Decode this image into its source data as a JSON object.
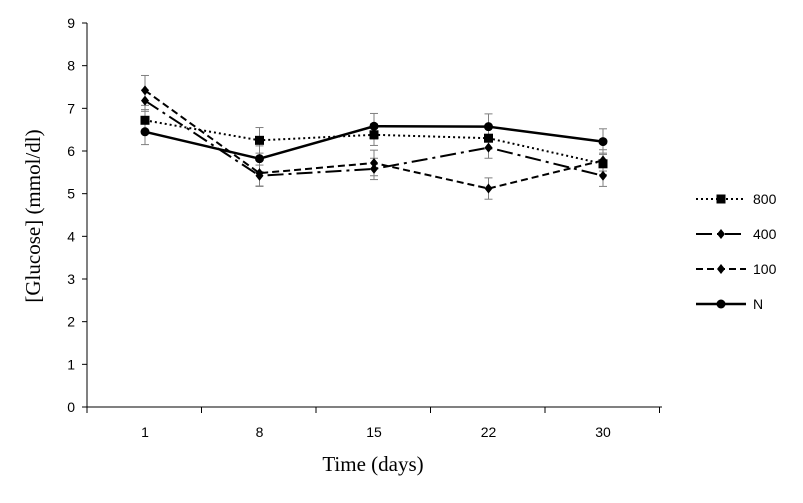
{
  "chart_data": {
    "type": "line",
    "xlabel": "Time (days)",
    "ylabel": "[Glucose] (mmol/dl)",
    "categories": [
      "1",
      "8",
      "15",
      "22",
      "30"
    ],
    "ylim": [
      0,
      9
    ],
    "yticks": [
      0,
      1,
      2,
      3,
      4,
      5,
      6,
      7,
      8,
      9
    ],
    "grid": false,
    "legend_position": "right",
    "series": [
      {
        "name": "800",
        "values": [
          6.72,
          6.25,
          6.38,
          6.3,
          5.7
        ],
        "errors": [
          0.25,
          0.3,
          0.25,
          0.25,
          0.25
        ],
        "marker": "square",
        "line_style": "dotted"
      },
      {
        "name": "400",
        "values": [
          7.18,
          5.42,
          5.58,
          6.08,
          5.42
        ],
        "errors": [
          0.25,
          0.25,
          0.25,
          0.25,
          0.25
        ],
        "marker": "diamond",
        "line_style": "dash-dot"
      },
      {
        "name": "100",
        "values": [
          7.42,
          5.48,
          5.72,
          5.12,
          5.78
        ],
        "errors": [
          0.35,
          0.3,
          0.3,
          0.25,
          0.25
        ],
        "marker": "diamond",
        "line_style": "dashed"
      },
      {
        "name": "N",
        "values": [
          6.45,
          5.82,
          6.58,
          6.57,
          6.22
        ],
        "errors": [
          0.3,
          0.3,
          0.3,
          0.3,
          0.3
        ],
        "marker": "circle",
        "line_style": "solid"
      }
    ]
  }
}
